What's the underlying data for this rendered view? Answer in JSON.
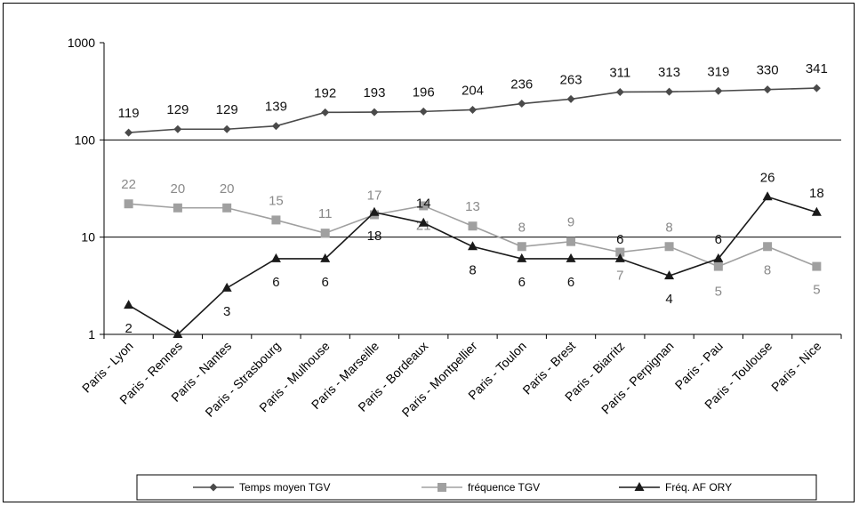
{
  "chart_data": {
    "type": "line",
    "y_scale": "log",
    "ylim": [
      1,
      1000
    ],
    "y_ticks": [
      "1",
      "10",
      "100",
      "1000"
    ],
    "y_tick_values": [
      1,
      10,
      100,
      1000
    ],
    "categories": [
      "Paris - Lyon",
      "Paris - Rennes",
      "Paris - Nantes",
      "Paris - Strasbourg",
      "Paris - Mulhouse",
      "Paris - Marseille",
      "Paris - Bordeaux",
      "Paris - Montpellier",
      "Paris - Toulon",
      "Paris - Brest",
      "Paris - Biarritz",
      "Paris - Perpignan",
      "Paris - Pau",
      "Paris - Toulouse",
      "Paris - Nice"
    ],
    "gridlines": [
      10,
      100
    ],
    "legend_position": "bottom",
    "series": [
      {
        "name": "Temps moyen TGV",
        "color": "#4a4a4a",
        "marker": "diamond",
        "values": [
          119,
          129,
          129,
          139,
          192,
          193,
          196,
          204,
          236,
          263,
          311,
          313,
          319,
          330,
          341
        ],
        "labels": [
          "119",
          "129",
          "129",
          "139",
          "192",
          "193",
          "196",
          "204",
          "236",
          "263",
          "311",
          "313",
          "319",
          "330",
          "341"
        ]
      },
      {
        "name": "fréquence TGV",
        "color": "#a0a0a0",
        "marker": "square",
        "values": [
          22,
          20,
          20,
          15,
          11,
          17,
          21,
          13,
          8,
          9,
          7,
          8,
          5,
          8,
          5
        ],
        "labels": [
          "22",
          "20",
          "20",
          "15",
          "11",
          "17",
          "21",
          "13",
          "8",
          "9",
          "7",
          "8",
          "5",
          "8",
          "5"
        ]
      },
      {
        "name": "Fréq. AF ORY",
        "color": "#1a1a1a",
        "marker": "triangle",
        "values": [
          2,
          1,
          3,
          6,
          6,
          18,
          14,
          8,
          6,
          6,
          6,
          4,
          6,
          26,
          18
        ],
        "labels": [
          "2",
          "",
          "3",
          "6",
          "6",
          "18",
          "14",
          "8",
          "6",
          "6",
          "6",
          "4",
          "6",
          "26",
          "18"
        ]
      }
    ]
  }
}
